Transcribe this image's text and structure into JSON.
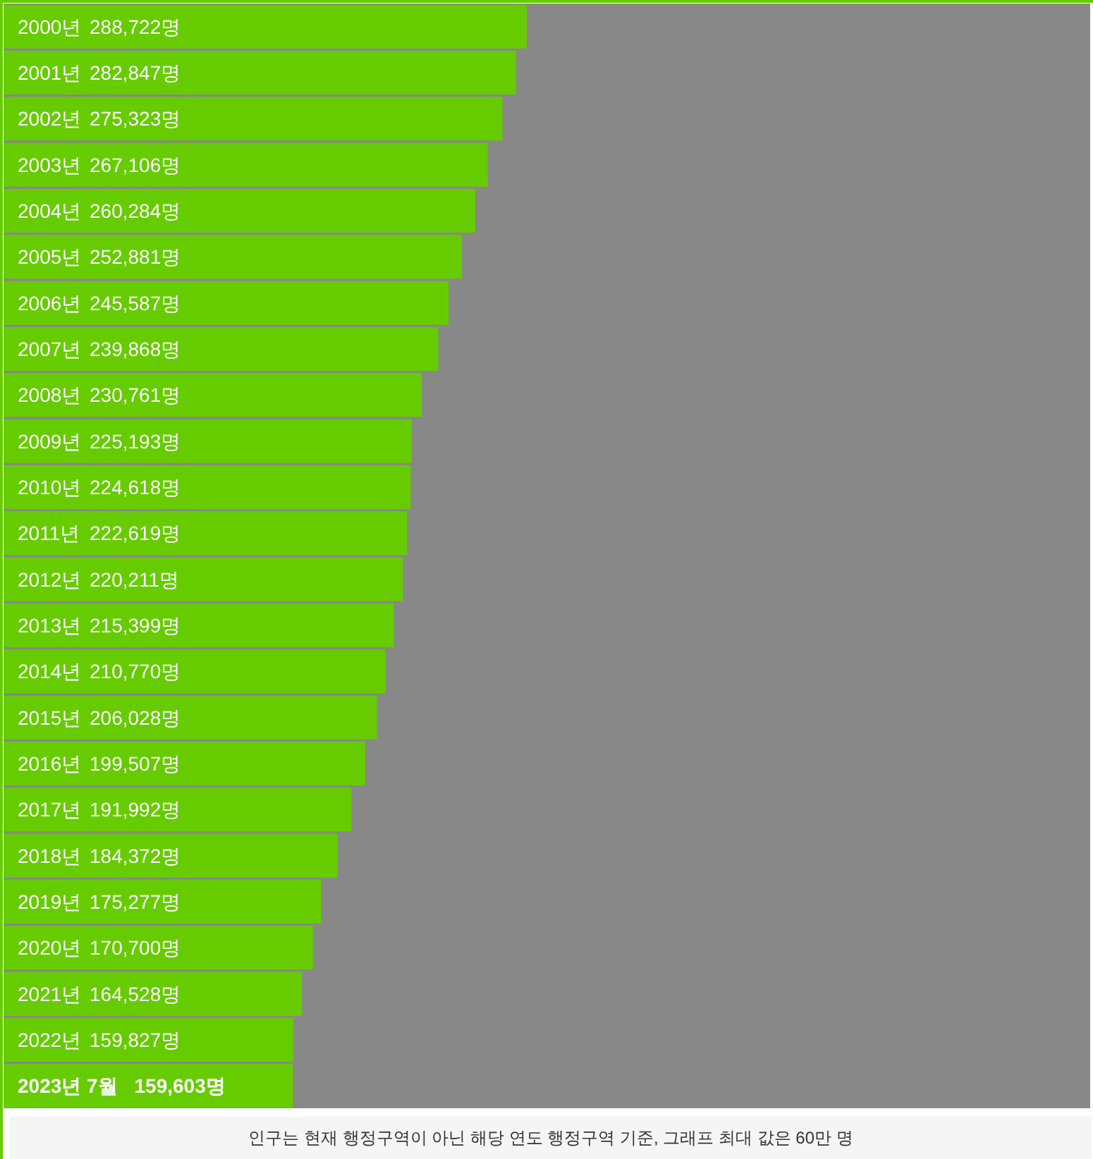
{
  "chart_data": {
    "type": "bar",
    "orientation": "horizontal",
    "categories": [
      "2000년",
      "2001년",
      "2002년",
      "2003년",
      "2004년",
      "2005년",
      "2006년",
      "2007년",
      "2008년",
      "2009년",
      "2010년",
      "2011년",
      "2012년",
      "2013년",
      "2014년",
      "2015년",
      "2016년",
      "2017년",
      "2018년",
      "2019년",
      "2020년",
      "2021년",
      "2022년",
      "2023년 7월"
    ],
    "values": [
      288722,
      282847,
      275323,
      267106,
      260284,
      252881,
      245587,
      239868,
      230761,
      225193,
      224618,
      222619,
      220211,
      215399,
      210770,
      206028,
      199507,
      191992,
      184372,
      175277,
      170700,
      164528,
      159827,
      159603
    ],
    "value_labels": [
      "288,722명",
      "282,847명",
      "275,323명",
      "267,106명",
      "260,284명",
      "252,881명",
      "245,587명",
      "239,868명",
      "230,761명",
      "225,193명",
      "224,618명",
      "222,619명",
      "220,211명",
      "215,399명",
      "210,770명",
      "206,028명",
      "199,507명",
      "191,992명",
      "184,372명",
      "175,277명",
      "170,700명",
      "164,528명",
      "159,827명",
      "159,603명"
    ],
    "color": "#66cc00",
    "xlim": [
      0,
      600000
    ],
    "tick_labels": false,
    "grid": false,
    "annotations": [
      "인구는 현재 행정구역이 아닌 해당 연도 행정구역 기준, 그래프 최대 값은 60만 명"
    ]
  }
}
